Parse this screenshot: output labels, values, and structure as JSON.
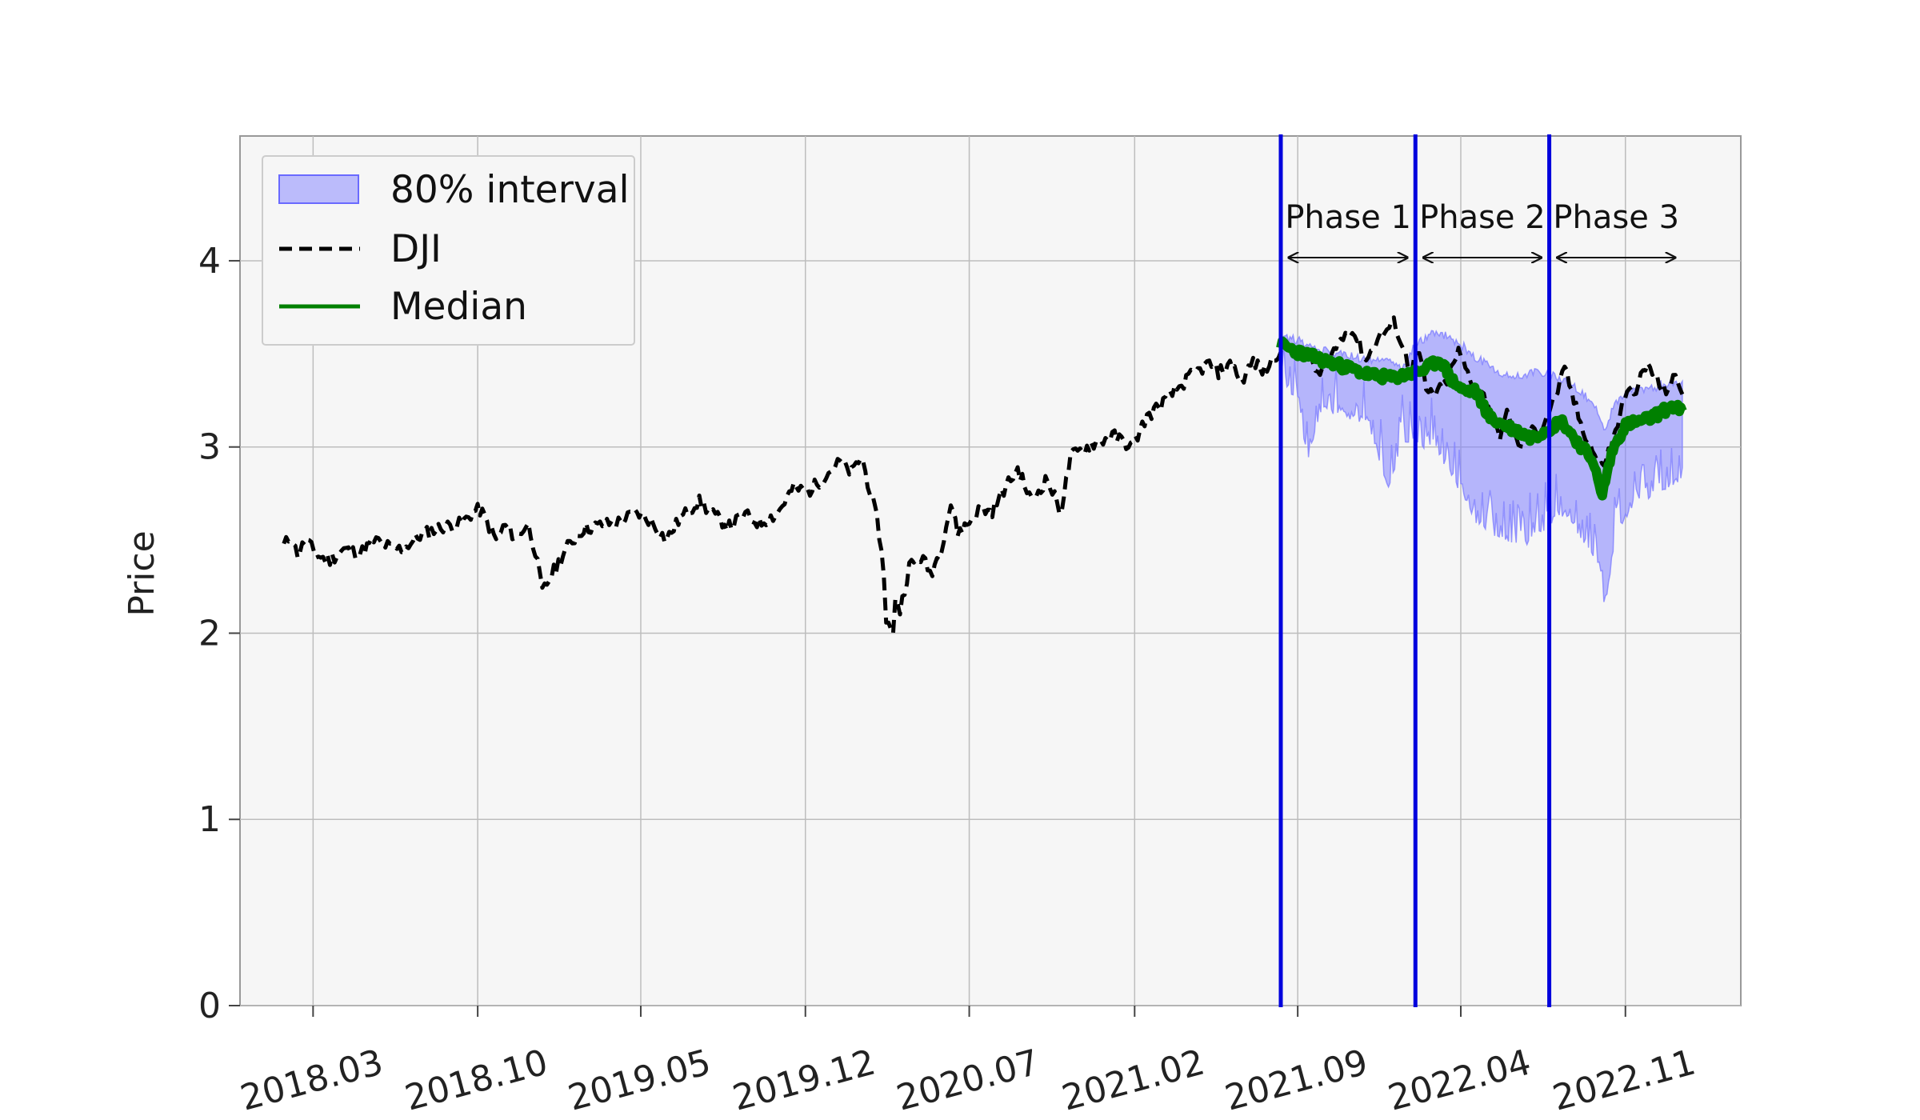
{
  "chart_data": {
    "type": "line",
    "title": "",
    "xlabel": "",
    "ylabel": "Price",
    "ylim": [
      0,
      4.67
    ],
    "xlim": [
      "2017-11-26",
      "2023-03-31"
    ],
    "grid": true,
    "legend_position": "top-left",
    "y_ticks": [
      0,
      1,
      2,
      3,
      4
    ],
    "x_ticks": [
      {
        "date": "2018-03-01",
        "label": "2018.03"
      },
      {
        "date": "2018-10-01",
        "label": "2018.10"
      },
      {
        "date": "2019-05-01",
        "label": "2019.05"
      },
      {
        "date": "2019-12-01",
        "label": "2019.12"
      },
      {
        "date": "2020-07-01",
        "label": "2020.07"
      },
      {
        "date": "2021-02-01",
        "label": "2021.02"
      },
      {
        "date": "2021-09-01",
        "label": "2021.09"
      },
      {
        "date": "2022-04-01",
        "label": "2022.04"
      },
      {
        "date": "2022-11-01",
        "label": "2022.11"
      }
    ],
    "legend": [
      {
        "label": "80% interval",
        "style": "band"
      },
      {
        "label": "DJI",
        "style": "dashed"
      },
      {
        "label": "Median",
        "style": "solid"
      }
    ],
    "colors": {
      "dji": "#000000",
      "median": "#008000",
      "band": "#8080ff",
      "phase_line": "#0000dd",
      "plot_background": "#f6f6f6"
    },
    "phase_boundaries": [
      "2021-08-10",
      "2022-02-01",
      "2022-07-25"
    ],
    "phases": [
      {
        "label": "Phase 1",
        "start": "2021-08-10",
        "end": "2022-02-01"
      },
      {
        "label": "Phase 2",
        "start": "2022-02-01",
        "end": "2022-07-25"
      },
      {
        "label": "Phase 3",
        "start": "2022-07-25",
        "end": "2023-01-15"
      }
    ],
    "series": [
      {
        "name": "DJI",
        "points": [
          [
            "2018-01-22",
            2.47
          ],
          [
            "2018-02-01",
            2.53
          ],
          [
            "2018-02-08",
            2.42
          ],
          [
            "2018-02-20",
            2.5
          ],
          [
            "2018-03-05",
            2.42
          ],
          [
            "2018-03-22",
            2.39
          ],
          [
            "2018-04-10",
            2.45
          ],
          [
            "2018-05-01",
            2.43
          ],
          [
            "2018-05-20",
            2.5
          ],
          [
            "2018-06-10",
            2.46
          ],
          [
            "2018-06-25",
            2.45
          ],
          [
            "2018-07-20",
            2.53
          ],
          [
            "2018-08-15",
            2.57
          ],
          [
            "2018-09-10",
            2.59
          ],
          [
            "2018-09-28",
            2.66
          ],
          [
            "2018-10-05",
            2.66
          ],
          [
            "2018-10-15",
            2.58
          ],
          [
            "2018-10-25",
            2.5
          ],
          [
            "2018-11-05",
            2.58
          ],
          [
            "2018-11-20",
            2.51
          ],
          [
            "2018-12-05",
            2.59
          ],
          [
            "2018-12-15",
            2.44
          ],
          [
            "2018-12-24",
            2.22
          ],
          [
            "2019-01-10",
            2.35
          ],
          [
            "2019-01-25",
            2.46
          ],
          [
            "2019-02-15",
            2.56
          ],
          [
            "2019-03-10",
            2.58
          ],
          [
            "2019-04-05",
            2.6
          ],
          [
            "2019-04-25",
            2.65
          ],
          [
            "2019-05-15",
            2.6
          ],
          [
            "2019-06-03",
            2.5
          ],
          [
            "2019-06-20",
            2.61
          ],
          [
            "2019-07-15",
            2.71
          ],
          [
            "2019-08-05",
            2.63
          ],
          [
            "2019-08-25",
            2.57
          ],
          [
            "2019-09-12",
            2.64
          ],
          [
            "2019-10-02",
            2.59
          ],
          [
            "2019-10-25",
            2.64
          ],
          [
            "2019-11-15",
            2.78
          ],
          [
            "2019-12-05",
            2.76
          ],
          [
            "2019-12-25",
            2.84
          ],
          [
            "2020-01-15",
            2.92
          ],
          [
            "2020-01-30",
            2.86
          ],
          [
            "2020-02-12",
            2.95
          ],
          [
            "2020-02-25",
            2.73
          ],
          [
            "2020-03-05",
            2.57
          ],
          [
            "2020-03-12",
            2.32
          ],
          [
            "2020-03-16",
            2.0
          ],
          [
            "2020-03-20",
            2.09
          ],
          [
            "2020-03-23",
            1.86
          ],
          [
            "2020-03-26",
            2.22
          ],
          [
            "2020-04-02",
            2.12
          ],
          [
            "2020-04-14",
            2.36
          ],
          [
            "2020-04-30",
            2.41
          ],
          [
            "2020-05-12",
            2.32
          ],
          [
            "2020-05-25",
            2.45
          ],
          [
            "2020-06-08",
            2.71
          ],
          [
            "2020-06-15",
            2.54
          ],
          [
            "2020-06-30",
            2.59
          ],
          [
            "2020-07-15",
            2.67
          ],
          [
            "2020-07-30",
            2.65
          ],
          [
            "2020-08-15",
            2.77
          ],
          [
            "2020-09-02",
            2.88
          ],
          [
            "2020-09-20",
            2.71
          ],
          [
            "2020-10-10",
            2.83
          ],
          [
            "2020-10-28",
            2.65
          ],
          [
            "2020-11-10",
            2.95
          ],
          [
            "2020-12-10",
            3.02
          ],
          [
            "2021-01-05",
            3.06
          ],
          [
            "2021-01-29",
            3.0
          ],
          [
            "2021-02-15",
            3.15
          ],
          [
            "2021-03-15",
            3.26
          ],
          [
            "2021-04-15",
            3.38
          ],
          [
            "2021-05-10",
            3.45
          ],
          [
            "2021-05-20",
            3.4
          ],
          [
            "2021-06-10",
            3.45
          ],
          [
            "2021-06-18",
            3.34
          ],
          [
            "2021-07-05",
            3.46
          ],
          [
            "2021-07-19",
            3.4
          ],
          [
            "2021-08-10",
            3.53
          ],
          [
            "2021-08-25",
            3.53
          ],
          [
            "2021-09-10",
            3.51
          ],
          [
            "2021-09-30",
            3.38
          ],
          [
            "2021-10-15",
            3.5
          ],
          [
            "2021-11-05",
            3.63
          ],
          [
            "2021-11-15",
            3.6
          ],
          [
            "2021-11-30",
            3.46
          ],
          [
            "2021-12-10",
            3.56
          ],
          [
            "2021-12-29",
            3.64
          ],
          [
            "2022-01-05",
            3.67
          ],
          [
            "2022-01-15",
            3.54
          ],
          [
            "2022-01-25",
            3.42
          ],
          [
            "2022-02-05",
            3.52
          ],
          [
            "2022-02-15",
            3.3
          ],
          [
            "2022-02-24",
            3.28
          ],
          [
            "2022-03-10",
            3.32
          ],
          [
            "2022-03-29",
            3.51
          ],
          [
            "2022-04-15",
            3.35
          ],
          [
            "2022-05-05",
            3.25
          ],
          [
            "2022-05-20",
            3.05
          ],
          [
            "2022-06-01",
            3.18
          ],
          [
            "2022-06-16",
            2.98
          ],
          [
            "2022-06-30",
            3.08
          ],
          [
            "2022-07-15",
            3.1
          ],
          [
            "2022-07-31",
            3.25
          ],
          [
            "2022-08-15",
            3.42
          ],
          [
            "2022-08-25",
            3.26
          ],
          [
            "2022-09-05",
            3.11
          ],
          [
            "2022-09-20",
            2.98
          ],
          [
            "2022-09-30",
            2.88
          ],
          [
            "2022-10-15",
            3.02
          ],
          [
            "2022-10-31",
            3.27
          ],
          [
            "2022-11-15",
            3.32
          ],
          [
            "2022-11-30",
            3.44
          ],
          [
            "2022-12-10",
            3.38
          ],
          [
            "2022-12-20",
            3.29
          ],
          [
            "2023-01-05",
            3.37
          ],
          [
            "2023-01-15",
            3.3
          ]
        ]
      },
      {
        "name": "Median",
        "points": [
          [
            "2021-08-10",
            3.55
          ],
          [
            "2021-09-01",
            3.51
          ],
          [
            "2021-10-01",
            3.47
          ],
          [
            "2021-11-01",
            3.43
          ],
          [
            "2021-12-01",
            3.39
          ],
          [
            "2022-01-01",
            3.37
          ],
          [
            "2022-02-01",
            3.4
          ],
          [
            "2022-02-15",
            3.42
          ],
          [
            "2022-03-05",
            3.47
          ],
          [
            "2022-03-20",
            3.36
          ],
          [
            "2022-04-05",
            3.3
          ],
          [
            "2022-04-20",
            3.3
          ],
          [
            "2022-05-10",
            3.15
          ],
          [
            "2022-06-01",
            3.11
          ],
          [
            "2022-07-01",
            3.05
          ],
          [
            "2022-07-25",
            3.1
          ],
          [
            "2022-08-10",
            3.14
          ],
          [
            "2022-09-01",
            3.02
          ],
          [
            "2022-09-20",
            2.93
          ],
          [
            "2022-10-01",
            2.73
          ],
          [
            "2022-10-15",
            2.98
          ],
          [
            "2022-11-01",
            3.12
          ],
          [
            "2022-12-01",
            3.15
          ],
          [
            "2023-01-01",
            3.22
          ],
          [
            "2023-01-15",
            3.19
          ]
        ]
      },
      {
        "name": "80% interval",
        "points": [
          [
            "2021-08-10",
            3.36,
            3.6
          ],
          [
            "2021-09-01",
            3.22,
            3.57
          ],
          [
            "2021-09-15",
            2.95,
            3.55
          ],
          [
            "2021-10-01",
            3.2,
            3.52
          ],
          [
            "2021-11-01",
            3.18,
            3.5
          ],
          [
            "2021-12-01",
            3.15,
            3.47
          ],
          [
            "2021-12-28",
            2.75,
            3.45
          ],
          [
            "2022-01-15",
            3.05,
            3.43
          ],
          [
            "2022-02-01",
            3.02,
            3.55
          ],
          [
            "2022-03-01",
            3.0,
            3.62
          ],
          [
            "2022-04-01",
            2.75,
            3.55
          ],
          [
            "2022-05-01",
            2.55,
            3.45
          ],
          [
            "2022-06-01",
            2.5,
            3.38
          ],
          [
            "2022-07-01",
            2.5,
            3.4
          ],
          [
            "2022-07-25",
            2.6,
            3.4
          ],
          [
            "2022-08-15",
            2.65,
            3.36
          ],
          [
            "2022-09-15",
            2.45,
            3.25
          ],
          [
            "2022-10-01",
            2.3,
            3.15
          ],
          [
            "2022-10-05",
            2.15,
            3.1
          ],
          [
            "2022-10-20",
            2.55,
            3.25
          ],
          [
            "2022-11-15",
            2.7,
            3.3
          ],
          [
            "2022-12-15",
            2.75,
            3.33
          ],
          [
            "2023-01-15",
            2.85,
            3.35
          ]
        ]
      }
    ]
  }
}
